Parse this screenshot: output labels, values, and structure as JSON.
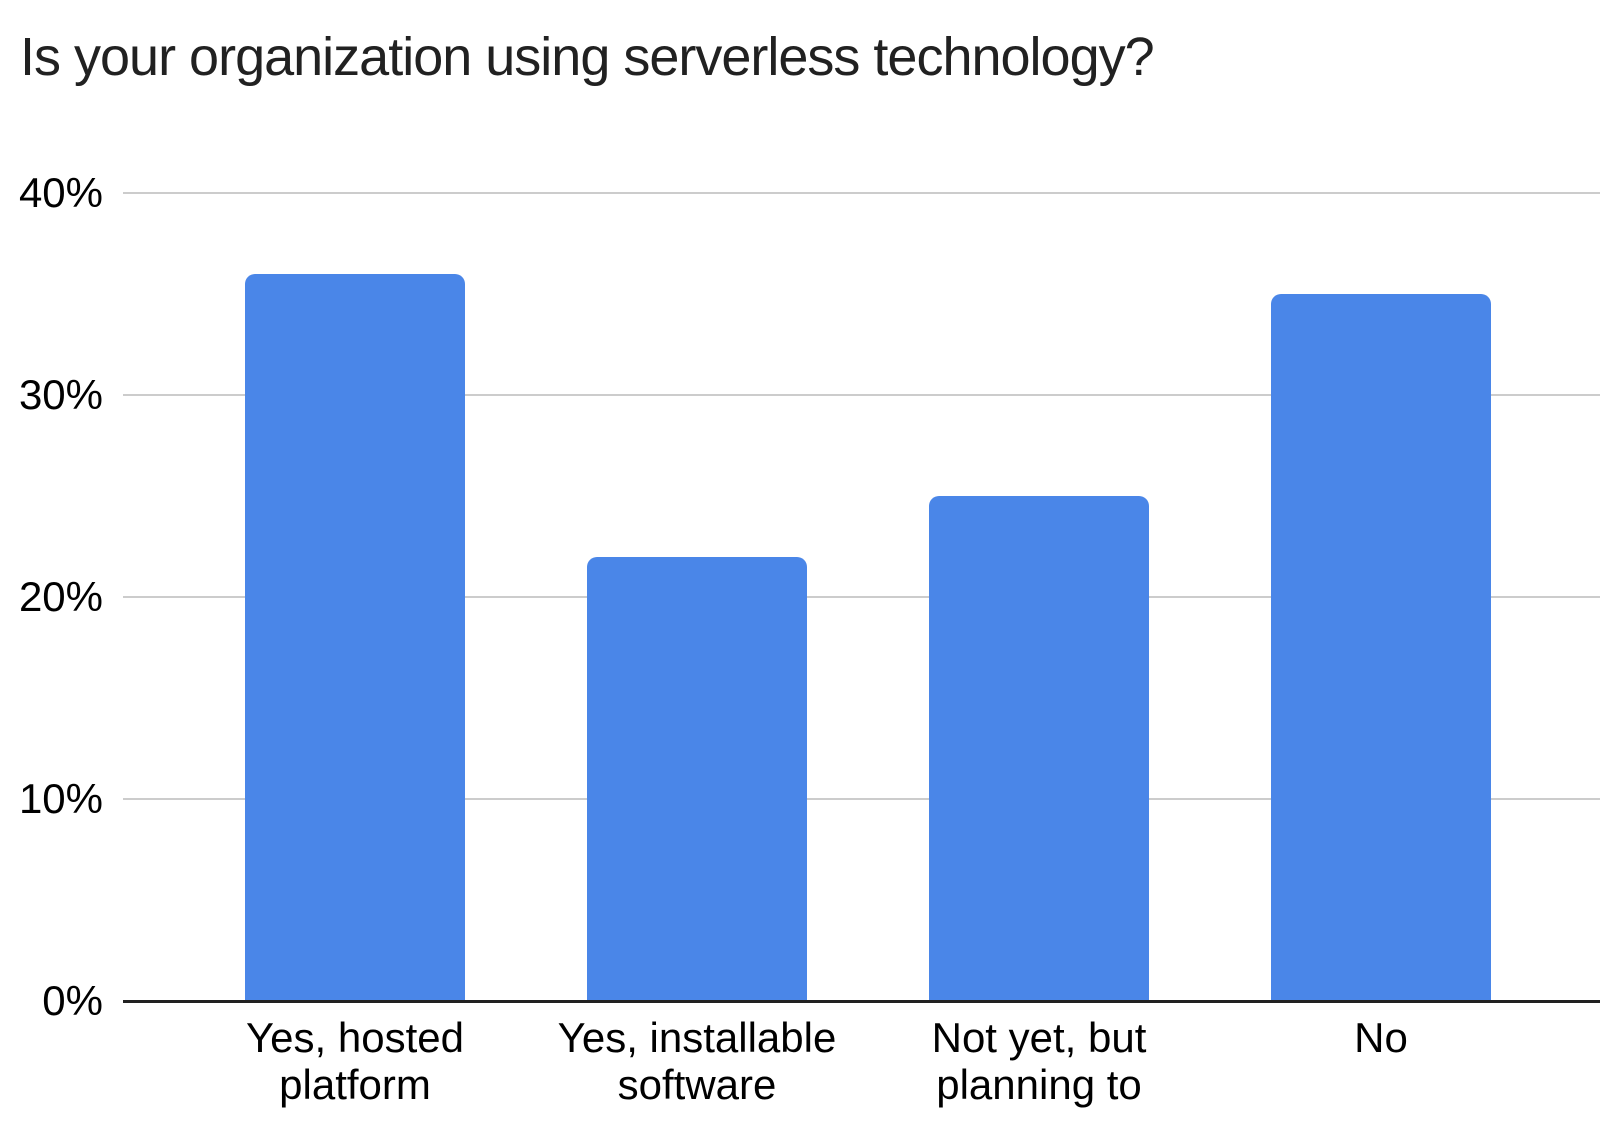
{
  "chart_data": {
    "type": "bar",
    "title": "Is your organization using serverless technology?",
    "categories": [
      "Yes, hosted platform",
      "Yes, installable software",
      "Not yet, but planning to",
      "No"
    ],
    "category_label_lines": [
      [
        "Yes, hosted",
        "platform"
      ],
      [
        "Yes, installable",
        "software"
      ],
      [
        "Not yet, but",
        "planning to"
      ],
      [
        "No"
      ]
    ],
    "values": [
      36,
      22,
      25,
      35
    ],
    "value_unit": "percent",
    "ylim": [
      0,
      40
    ],
    "yticks": [
      0,
      10,
      20,
      30,
      40
    ],
    "ytick_labels": [
      "0%",
      "10%",
      "20%",
      "30%",
      "40%"
    ],
    "grid": true,
    "legend": "none",
    "colors": {
      "bar": "#4a86e8",
      "gridline": "#cccccc",
      "axis_line": "#212121",
      "label_text": "#000000",
      "title_text": "#212121",
      "background": "#ffffff"
    }
  }
}
